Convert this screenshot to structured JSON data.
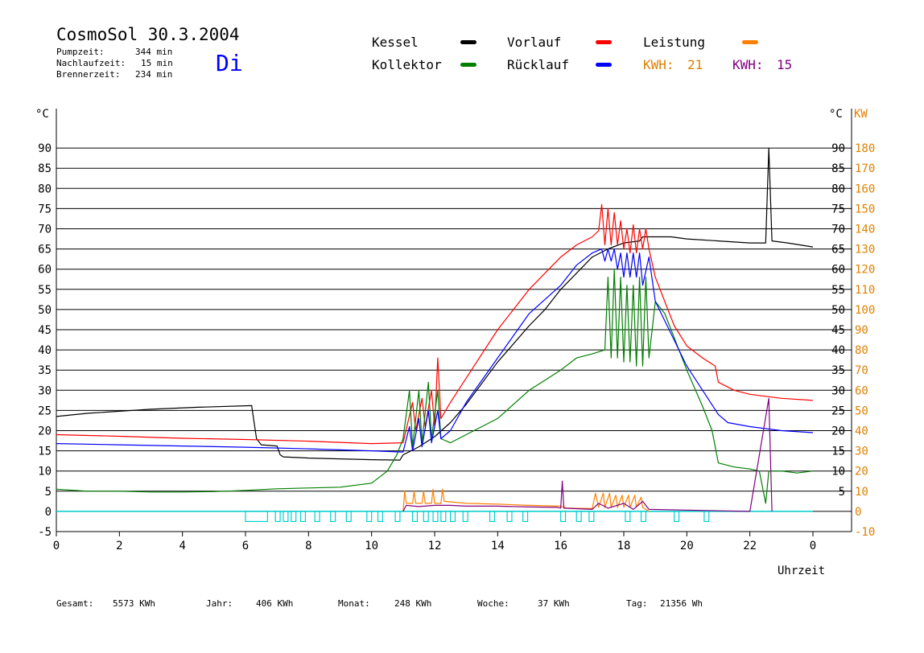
{
  "header": {
    "title": "CosmoSol 30.3.2004",
    "day": "Di",
    "stats": [
      {
        "label": "Pumpzeit:",
        "value": "344 min"
      },
      {
        "label": "Nachlaufzeit:",
        "value": "15 min"
      },
      {
        "label": "Brennerzeit:",
        "value": "234 min"
      }
    ]
  },
  "legend": {
    "items": [
      {
        "label": "Kessel",
        "color": "#000000"
      },
      {
        "label": "Vorlauf",
        "color": "#ff0000"
      },
      {
        "label": "Leistung",
        "color": "#ff8000"
      },
      {
        "label": "Kollektor",
        "color": "#008000"
      },
      {
        "label": "Rücklauf",
        "color": "#0000ff"
      }
    ],
    "kwh": [
      {
        "label": "KWH:",
        "value": "21",
        "color": "#ff8000"
      },
      {
        "label": "KWH:",
        "value": "15",
        "color": "#800080"
      }
    ]
  },
  "footer": [
    {
      "label": "Gesamt:",
      "value": "5573 KWh"
    },
    {
      "label": "Jahr:",
      "value": "406 KWh"
    },
    {
      "label": "Monat:",
      "value": "248 KWh"
    },
    {
      "label": "Woche:",
      "value": "37 KWh"
    },
    {
      "label": "Tag:",
      "value": "21356 Wh"
    }
  ],
  "chart_data": {
    "type": "line",
    "xlabel": "Uhrzeit",
    "x_ticks": [
      "0",
      "2",
      "4",
      "6",
      "8",
      "10",
      "12",
      "14",
      "16",
      "18",
      "20",
      "22",
      "0"
    ],
    "xlim": [
      0,
      24
    ],
    "ylabel_left": "°C",
    "ylabel_right": "KW",
    "ylim": [
      -5,
      95
    ],
    "y_ticks_left": [
      "-5",
      "0",
      "5",
      "10",
      "15",
      "20",
      "25",
      "30",
      "35",
      "40",
      "45",
      "50",
      "55",
      "60",
      "65",
      "70",
      "75",
      "80",
      "85",
      "90"
    ],
    "y_ticks_right_c": [
      "5",
      "10",
      "15",
      "20",
      "25",
      "30",
      "35",
      "40",
      "45",
      "50",
      "55",
      "60",
      "65",
      "70",
      "75",
      "80",
      "85",
      "90"
    ],
    "y_ticks_right_kw": [
      "-10",
      "0",
      "10",
      "20",
      "30",
      "40",
      "50",
      "60",
      "70",
      "80",
      "90",
      "100",
      "110",
      "120",
      "130",
      "140",
      "150",
      "160",
      "170",
      "180"
    ],
    "grid": true,
    "series": [
      {
        "name": "Kessel",
        "color": "#000000",
        "points": [
          [
            0,
            23.5
          ],
          [
            1,
            24.3
          ],
          [
            3,
            25.3
          ],
          [
            4.5,
            25.8
          ],
          [
            6.2,
            26.2
          ],
          [
            6.2,
            26
          ],
          [
            6.35,
            18
          ],
          [
            6.5,
            16.5
          ],
          [
            7,
            16.2
          ],
          [
            7.1,
            14
          ],
          [
            7.2,
            13.5
          ],
          [
            8,
            13.2
          ],
          [
            10,
            12.8
          ],
          [
            10.9,
            12.7
          ],
          [
            11,
            14
          ],
          [
            11.5,
            16
          ],
          [
            12,
            18.5
          ],
          [
            12.5,
            22
          ],
          [
            13,
            26.5
          ],
          [
            14,
            37
          ],
          [
            15,
            46
          ],
          [
            15.5,
            50
          ],
          [
            16,
            55
          ],
          [
            16.5,
            59
          ],
          [
            17,
            63
          ],
          [
            17.5,
            65
          ],
          [
            18,
            66.5
          ],
          [
            18.5,
            67
          ],
          [
            18.6,
            68
          ],
          [
            19.5,
            68
          ],
          [
            20,
            67.5
          ],
          [
            21,
            67
          ],
          [
            22,
            66.5
          ],
          [
            22.5,
            66.5
          ],
          [
            22.6,
            90
          ],
          [
            22.7,
            67
          ],
          [
            23.2,
            66.5
          ],
          [
            24,
            65.5
          ]
        ]
      },
      {
        "name": "Vorlauf",
        "color": "#ff0000",
        "points": [
          [
            0,
            19
          ],
          [
            2,
            18.6
          ],
          [
            4,
            18.1
          ],
          [
            6,
            17.8
          ],
          [
            8,
            17.4
          ],
          [
            10,
            16.8
          ],
          [
            11,
            17
          ],
          [
            11.3,
            27
          ],
          [
            11.4,
            20
          ],
          [
            11.6,
            28
          ],
          [
            11.7,
            21
          ],
          [
            11.9,
            30
          ],
          [
            12,
            21
          ],
          [
            12.1,
            38
          ],
          [
            12.2,
            23
          ],
          [
            12.5,
            27
          ],
          [
            13,
            33
          ],
          [
            14,
            45
          ],
          [
            15,
            55
          ],
          [
            15.5,
            59
          ],
          [
            16,
            63
          ],
          [
            16.5,
            66
          ],
          [
            17,
            68
          ],
          [
            17.2,
            69.5
          ],
          [
            17.3,
            76
          ],
          [
            17.4,
            66
          ],
          [
            17.5,
            75
          ],
          [
            17.6,
            66
          ],
          [
            17.7,
            74
          ],
          [
            17.8,
            66
          ],
          [
            17.9,
            72
          ],
          [
            18,
            65
          ],
          [
            18.1,
            70
          ],
          [
            18.2,
            64
          ],
          [
            18.3,
            71
          ],
          [
            18.4,
            64
          ],
          [
            18.5,
            70
          ],
          [
            18.6,
            65
          ],
          [
            18.7,
            70
          ],
          [
            18.8,
            65
          ],
          [
            19,
            58
          ],
          [
            19.3,
            52
          ],
          [
            19.6,
            46
          ],
          [
            20,
            41
          ],
          [
            20.5,
            38
          ],
          [
            20.9,
            36
          ],
          [
            21,
            32
          ],
          [
            21.5,
            30
          ],
          [
            22,
            29
          ],
          [
            23,
            28
          ],
          [
            24,
            27.5
          ]
        ]
      },
      {
        "name": "Kollektor",
        "color": "#008000",
        "points": [
          [
            0,
            5.5
          ],
          [
            1,
            5
          ],
          [
            2,
            5
          ],
          [
            3,
            4.8
          ],
          [
            4,
            4.8
          ],
          [
            5,
            4.9
          ],
          [
            6,
            5.2
          ],
          [
            7,
            5.6
          ],
          [
            8,
            5.8
          ],
          [
            9,
            6
          ],
          [
            10,
            7
          ],
          [
            10.5,
            10
          ],
          [
            10.8,
            14
          ],
          [
            11,
            18
          ],
          [
            11.2,
            30
          ],
          [
            11.3,
            16
          ],
          [
            11.5,
            30
          ],
          [
            11.6,
            17
          ],
          [
            11.8,
            32
          ],
          [
            11.9,
            18
          ],
          [
            12.1,
            30
          ],
          [
            12.2,
            18
          ],
          [
            12.5,
            17
          ],
          [
            13,
            19
          ],
          [
            14,
            23
          ],
          [
            15,
            30
          ],
          [
            16,
            35
          ],
          [
            16.5,
            38
          ],
          [
            17,
            39
          ],
          [
            17.4,
            40
          ],
          [
            17.5,
            58
          ],
          [
            17.6,
            38
          ],
          [
            17.7,
            60
          ],
          [
            17.8,
            38
          ],
          [
            17.9,
            58
          ],
          [
            18,
            37
          ],
          [
            18.1,
            56
          ],
          [
            18.2,
            37
          ],
          [
            18.3,
            56
          ],
          [
            18.4,
            36
          ],
          [
            18.5,
            58
          ],
          [
            18.6,
            36
          ],
          [
            18.7,
            58
          ],
          [
            18.8,
            38
          ],
          [
            19,
            52
          ],
          [
            19.3,
            49
          ],
          [
            19.6,
            43
          ],
          [
            20,
            35
          ],
          [
            20.5,
            26
          ],
          [
            20.8,
            20
          ],
          [
            21,
            12
          ],
          [
            21.5,
            11
          ],
          [
            22,
            10.5
          ],
          [
            22.3,
            10
          ],
          [
            22.5,
            2
          ],
          [
            22.6,
            10
          ],
          [
            23,
            10
          ],
          [
            23.5,
            9.5
          ],
          [
            24,
            10
          ]
        ]
      },
      {
        "name": "Rücklauf",
        "color": "#0000ff",
        "points": [
          [
            0,
            16.8
          ],
          [
            2,
            16.5
          ],
          [
            4,
            16.2
          ],
          [
            6,
            15.9
          ],
          [
            8,
            15.5
          ],
          [
            10,
            15
          ],
          [
            11,
            14.7
          ],
          [
            11.2,
            21
          ],
          [
            11.3,
            15
          ],
          [
            11.5,
            23
          ],
          [
            11.6,
            16
          ],
          [
            11.8,
            25
          ],
          [
            11.9,
            17
          ],
          [
            12.1,
            25
          ],
          [
            12.2,
            18
          ],
          [
            12.5,
            20
          ],
          [
            13,
            27
          ],
          [
            14,
            38
          ],
          [
            15,
            49
          ],
          [
            16,
            56
          ],
          [
            16.5,
            61
          ],
          [
            17,
            64
          ],
          [
            17.3,
            65
          ],
          [
            17.4,
            62
          ],
          [
            17.5,
            65
          ],
          [
            17.6,
            62
          ],
          [
            17.7,
            65
          ],
          [
            17.8,
            60
          ],
          [
            17.9,
            64
          ],
          [
            18,
            58
          ],
          [
            18.1,
            64
          ],
          [
            18.2,
            58
          ],
          [
            18.3,
            64
          ],
          [
            18.4,
            58
          ],
          [
            18.5,
            64
          ],
          [
            18.6,
            56
          ],
          [
            18.8,
            63
          ],
          [
            19,
            52
          ],
          [
            19.5,
            44
          ],
          [
            20,
            36
          ],
          [
            20.5,
            30
          ],
          [
            21,
            24
          ],
          [
            21.3,
            22
          ],
          [
            22,
            21
          ],
          [
            23,
            20
          ],
          [
            24,
            19.5
          ]
        ]
      },
      {
        "name": "Leistung",
        "color": "#ff8000",
        "points": [
          [
            11,
            0
          ],
          [
            11.05,
            5
          ],
          [
            11.1,
            2
          ],
          [
            11.3,
            2
          ],
          [
            11.35,
            5
          ],
          [
            11.4,
            2
          ],
          [
            11.6,
            2
          ],
          [
            11.65,
            5
          ],
          [
            11.7,
            2
          ],
          [
            11.9,
            2
          ],
          [
            11.95,
            5.5
          ],
          [
            12,
            2
          ],
          [
            12.2,
            2
          ],
          [
            12.25,
            5.5
          ],
          [
            12.3,
            2.5
          ],
          [
            13,
            2
          ],
          [
            14,
            1.8
          ],
          [
            15,
            1.5
          ],
          [
            16,
            1.3
          ],
          [
            16.2,
            0.8
          ],
          [
            17,
            0.7
          ],
          [
            17.1,
            4.5
          ],
          [
            17.2,
            1
          ],
          [
            17.35,
            4.5
          ],
          [
            17.4,
            1
          ],
          [
            17.55,
            4.5
          ],
          [
            17.6,
            1
          ],
          [
            17.75,
            4
          ],
          [
            17.8,
            1
          ],
          [
            17.95,
            4
          ],
          [
            18,
            1
          ],
          [
            18.15,
            4
          ],
          [
            18.2,
            1
          ],
          [
            18.35,
            4
          ],
          [
            18.4,
            1
          ],
          [
            18.55,
            3.5
          ],
          [
            18.6,
            1
          ],
          [
            18.8,
            0
          ]
        ]
      },
      {
        "name": "",
        "color": "#800080",
        "points": [
          [
            11,
            0
          ],
          [
            11.1,
            1.5
          ],
          [
            11.5,
            1.2
          ],
          [
            12,
            1.5
          ],
          [
            12.5,
            1.5
          ],
          [
            13,
            1.3
          ],
          [
            14,
            1.3
          ],
          [
            15,
            1.1
          ],
          [
            15.9,
            1
          ],
          [
            16,
            0.8
          ],
          [
            16.05,
            7.5
          ],
          [
            16.1,
            0.8
          ],
          [
            17,
            0.5
          ],
          [
            17.2,
            2
          ],
          [
            17.5,
            0.8
          ],
          [
            18,
            2
          ],
          [
            18.3,
            0.5
          ],
          [
            18.6,
            2.5
          ],
          [
            18.8,
            0.5
          ],
          [
            22,
            0
          ],
          [
            22.6,
            28
          ],
          [
            22.7,
            0
          ]
        ]
      }
    ],
    "pump_markers": [
      [
        6.0,
        6.7
      ],
      [
        6.95,
        7.1
      ],
      [
        7.2,
        7.35
      ],
      [
        7.45,
        7.6
      ],
      [
        7.75,
        7.9
      ],
      [
        8.2,
        8.35
      ],
      [
        8.7,
        8.85
      ],
      [
        9.2,
        9.35
      ],
      [
        9.85,
        10
      ],
      [
        10.2,
        10.35
      ],
      [
        10.75,
        10.9
      ],
      [
        11.3,
        11.45
      ],
      [
        11.65,
        11.8
      ],
      [
        11.95,
        12.1
      ],
      [
        12.2,
        12.35
      ],
      [
        12.5,
        12.65
      ],
      [
        12.9,
        13.05
      ],
      [
        13.75,
        13.9
      ],
      [
        14.3,
        14.45
      ],
      [
        14.8,
        14.95
      ],
      [
        16.0,
        16.15
      ],
      [
        16.5,
        16.65
      ],
      [
        16.9,
        17.05
      ],
      [
        18.05,
        18.2
      ],
      [
        18.55,
        18.7
      ],
      [
        19.6,
        19.75
      ],
      [
        20.55,
        20.7
      ]
    ]
  }
}
